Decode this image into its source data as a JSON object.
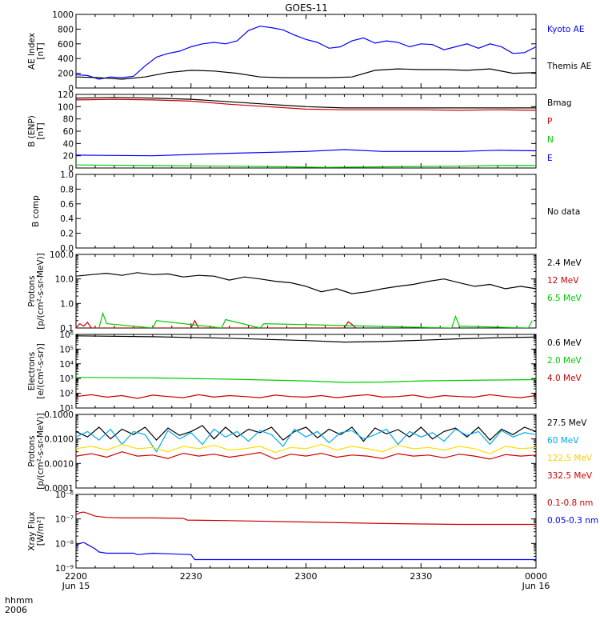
{
  "title": "GOES-11",
  "time_axis": {
    "label_line1": "hhmm",
    "label_line2": "2006",
    "ticks": [
      {
        "minute": 0,
        "label": "2200",
        "sub": "Jun 15"
      },
      {
        "minute": 30,
        "label": "2230",
        "sub": ""
      },
      {
        "minute": 60,
        "label": "2300",
        "sub": ""
      },
      {
        "minute": 90,
        "label": "2330",
        "sub": ""
      },
      {
        "minute": 120,
        "label": "0000",
        "sub": "Jun 16"
      }
    ]
  },
  "chart_data": [
    {
      "id": "ae",
      "type": "line",
      "ylabel": "AE Index\n[nT]",
      "yscale": "linear",
      "ylim": [
        0,
        1000
      ],
      "yticks": [
        0,
        200,
        400,
        600,
        800,
        1000
      ],
      "ytick_labels": [
        "0",
        "200",
        "400",
        "600",
        "800",
        "1000"
      ],
      "series": [
        {
          "name": "Kyoto AE",
          "color": "#0000ff",
          "x": [
            0,
            3,
            6,
            9,
            12,
            15,
            18,
            21,
            24,
            27,
            30,
            33,
            36,
            39,
            42,
            45,
            48,
            51,
            54,
            57,
            60,
            63,
            66,
            69,
            72,
            75,
            78,
            81,
            84,
            87,
            90,
            93,
            96,
            99,
            102,
            105,
            108,
            111,
            114,
            117,
            120
          ],
          "y": [
            180,
            170,
            120,
            150,
            140,
            160,
            300,
            420,
            470,
            500,
            560,
            600,
            620,
            600,
            640,
            780,
            840,
            820,
            790,
            720,
            660,
            620,
            540,
            560,
            640,
            680,
            610,
            640,
            620,
            560,
            600,
            590,
            520,
            560,
            600,
            540,
            600,
            560,
            470,
            480,
            560
          ]
        },
        {
          "name": "Themis AE",
          "color": "#000000",
          "x": [
            0,
            6,
            12,
            18,
            24,
            30,
            36,
            42,
            48,
            54,
            60,
            66,
            72,
            78,
            84,
            90,
            96,
            102,
            108,
            114,
            120
          ],
          "y": [
            150,
            140,
            120,
            150,
            210,
            240,
            230,
            200,
            150,
            140,
            140,
            140,
            150,
            240,
            260,
            250,
            250,
            240,
            260,
            200,
            210
          ]
        }
      ]
    },
    {
      "id": "bfield",
      "type": "line",
      "ylabel": "B (ENP)\n[nT]",
      "yscale": "linear",
      "ylim": [
        0,
        120
      ],
      "yticks": [
        0,
        20,
        40,
        60,
        80,
        100,
        120
      ],
      "ytick_labels": [
        "0",
        "20",
        "40",
        "60",
        "80",
        "100",
        "120"
      ],
      "series": [
        {
          "name": "Bmag",
          "color": "#000000",
          "x": [
            0,
            10,
            20,
            30,
            40,
            50,
            60,
            70,
            80,
            90,
            100,
            110,
            120
          ],
          "y": [
            114,
            115,
            114,
            112,
            108,
            104,
            100,
            98,
            98,
            98,
            98,
            98,
            98
          ]
        },
        {
          "name": "P",
          "color": "#cc0000",
          "x": [
            0,
            10,
            20,
            30,
            40,
            50,
            60,
            70,
            80,
            90,
            100,
            110,
            120
          ],
          "y": [
            111,
            112,
            111,
            109,
            104,
            100,
            96,
            95,
            95,
            95,
            94,
            95,
            94
          ]
        },
        {
          "name": "N",
          "color": "#00cc00",
          "x": [
            0,
            20,
            40,
            55,
            65,
            80,
            100,
            110,
            120
          ],
          "y": [
            5,
            4,
            3,
            2,
            1,
            2,
            3,
            4,
            4
          ]
        },
        {
          "name": "E",
          "color": "#0000ff",
          "x": [
            0,
            20,
            40,
            60,
            70,
            80,
            100,
            110,
            120
          ],
          "y": [
            21,
            20,
            24,
            27,
            30,
            27,
            27,
            29,
            28
          ]
        }
      ]
    },
    {
      "id": "bcomp",
      "type": "line",
      "ylabel": "B comp",
      "yscale": "linear",
      "ylim": [
        0,
        1
      ],
      "yticks": [
        0,
        0.2,
        0.4,
        0.6,
        0.8,
        1.0
      ],
      "ytick_labels": [
        "0.0",
        "0.2",
        "0.4",
        "0.6",
        "0.8",
        "1.0"
      ],
      "series": [],
      "side_labels": [
        {
          "text": "No data",
          "color": "#000000"
        }
      ]
    },
    {
      "id": "protons_low",
      "type": "line",
      "ylabel": "Protons\n[p/(cm²-s-sr-MeV)]",
      "yscale": "log",
      "ylim": [
        0.1,
        100
      ],
      "yticks": [
        0.1,
        1,
        10,
        100
      ],
      "ytick_labels": [
        "0.1",
        "1.0",
        "10.0",
        "100.0"
      ],
      "series": [
        {
          "name": "2.4 MeV",
          "color": "#000000",
          "x": [
            0,
            4,
            8,
            12,
            16,
            20,
            24,
            28,
            32,
            36,
            40,
            44,
            48,
            52,
            56,
            60,
            64,
            68,
            72,
            76,
            80,
            84,
            88,
            92,
            96,
            100,
            104,
            108,
            112,
            116,
            120
          ],
          "y": [
            13,
            15,
            17,
            14,
            18,
            15,
            16,
            12,
            14,
            13,
            9,
            12,
            10,
            8,
            7,
            5,
            3,
            4,
            2.5,
            3,
            4,
            5,
            6,
            8,
            10,
            7,
            5,
            6,
            4,
            5,
            4
          ]
        },
        {
          "name": "12 MeV",
          "color": "#cc0000",
          "x": [
            0,
            1,
            2,
            3,
            4,
            30,
            31,
            32,
            70,
            71,
            72,
            73
          ],
          "y": [
            0.1,
            0.15,
            0.12,
            0.17,
            0.1,
            0.1,
            0.2,
            0.1,
            0.1,
            0.18,
            0.14,
            0.1
          ]
        },
        {
          "name": "6.5 MeV",
          "color": "#00cc00",
          "x": [
            6,
            7,
            8,
            20,
            21,
            38,
            39,
            48,
            49,
            98,
            99,
            100,
            118,
            119
          ],
          "y": [
            0.1,
            0.4,
            0.15,
            0.1,
            0.2,
            0.1,
            0.22,
            0.1,
            0.15,
            0.1,
            0.3,
            0.12,
            0.1,
            0.2
          ]
        }
      ]
    },
    {
      "id": "electrons",
      "type": "line",
      "ylabel": "Electrons\n[e/(cm²-s-sr)]",
      "yscale": "log",
      "ylim": [
        10,
        1000000
      ],
      "yticks": [
        10,
        100,
        1000,
        10000,
        100000,
        1000000
      ],
      "ytick_labels": [
        "10¹",
        "10²",
        "10³",
        "10⁴",
        "10⁵",
        "10⁶"
      ],
      "series": [
        {
          "name": "0.6 MeV",
          "color": "#000000",
          "x": [
            0,
            20,
            40,
            60,
            70,
            80,
            90,
            100,
            110,
            120
          ],
          "y": [
            800000,
            700000,
            550000,
            380000,
            300000,
            330000,
            400000,
            500000,
            600000,
            650000
          ]
        },
        {
          "name": "2.0 MeV",
          "color": "#00cc00",
          "x": [
            0,
            20,
            40,
            60,
            70,
            80,
            90,
            100,
            110,
            120
          ],
          "y": [
            1200,
            1100,
            900,
            700,
            550,
            580,
            700,
            750,
            800,
            850
          ]
        },
        {
          "name": "4.0 MeV",
          "color": "#cc0000",
          "x": [
            0,
            4,
            8,
            12,
            16,
            20,
            24,
            28,
            32,
            36,
            40,
            44,
            48,
            52,
            56,
            60,
            64,
            68,
            72,
            76,
            80,
            84,
            88,
            92,
            96,
            100,
            104,
            108,
            112,
            116,
            120
          ],
          "y": [
            60,
            80,
            55,
            70,
            45,
            75,
            60,
            50,
            80,
            55,
            70,
            60,
            50,
            75,
            60,
            55,
            70,
            50,
            65,
            80,
            55,
            60,
            75,
            50,
            70,
            60,
            55,
            80,
            60,
            50,
            70
          ]
        }
      ]
    },
    {
      "id": "protons_high",
      "type": "line",
      "ylabel": "Protons\n[p/(cm²-s-sr-MeV)]",
      "yscale": "log",
      "ylim": [
        0.0001,
        0.1
      ],
      "yticks": [
        0.0001,
        0.001,
        0.01,
        0.1
      ],
      "ytick_labels": [
        "0.0001",
        "0.0010",
        "0.0100",
        "0.1000"
      ],
      "series": [
        {
          "name": "27.5 MeV",
          "color": "#000000",
          "x": [
            0,
            3,
            6,
            9,
            12,
            15,
            18,
            21,
            24,
            27,
            30,
            33,
            36,
            39,
            42,
            45,
            48,
            51,
            54,
            57,
            60,
            63,
            66,
            69,
            72,
            75,
            78,
            81,
            84,
            87,
            90,
            93,
            96,
            99,
            102,
            105,
            108,
            111,
            114,
            117,
            120
          ],
          "y": [
            0.02,
            0.012,
            0.03,
            0.01,
            0.025,
            0.015,
            0.03,
            0.009,
            0.028,
            0.014,
            0.02,
            0.035,
            0.01,
            0.03,
            0.012,
            0.025,
            0.018,
            0.03,
            0.009,
            0.02,
            0.03,
            0.011,
            0.025,
            0.015,
            0.03,
            0.008,
            0.028,
            0.016,
            0.024,
            0.012,
            0.03,
            0.01,
            0.02,
            0.028,
            0.012,
            0.03,
            0.009,
            0.025,
            0.015,
            0.03,
            0.02
          ]
        },
        {
          "name": "60 MeV",
          "color": "#00aaee",
          "x": [
            0,
            3,
            6,
            9,
            12,
            15,
            18,
            21,
            24,
            27,
            30,
            33,
            36,
            39,
            42,
            45,
            48,
            51,
            54,
            57,
            60,
            63,
            66,
            69,
            72,
            75,
            78,
            81,
            84,
            87,
            90,
            93,
            96,
            99,
            102,
            105,
            108,
            111,
            114,
            117,
            120
          ],
          "y": [
            0.012,
            0.02,
            0.009,
            0.025,
            0.006,
            0.02,
            0.015,
            0.003,
            0.022,
            0.01,
            0.018,
            0.006,
            0.025,
            0.012,
            0.02,
            0.008,
            0.022,
            0.015,
            0.005,
            0.025,
            0.012,
            0.02,
            0.007,
            0.018,
            0.022,
            0.01,
            0.015,
            0.025,
            0.006,
            0.02,
            0.012,
            0.018,
            0.008,
            0.025,
            0.014,
            0.02,
            0.006,
            0.022,
            0.012,
            0.018,
            0.015
          ]
        },
        {
          "name": "122.5 MeV",
          "color": "#ffdd00",
          "x": [
            0,
            4,
            8,
            12,
            16,
            20,
            24,
            28,
            32,
            36,
            40,
            44,
            48,
            52,
            56,
            60,
            64,
            68,
            72,
            76,
            80,
            84,
            88,
            92,
            96,
            100,
            104,
            108,
            112,
            116,
            120
          ],
          "y": [
            0.004,
            0.005,
            0.0035,
            0.006,
            0.004,
            0.0045,
            0.003,
            0.005,
            0.004,
            0.0055,
            0.0035,
            0.004,
            0.005,
            0.0028,
            0.0045,
            0.004,
            0.006,
            0.0035,
            0.005,
            0.004,
            0.003,
            0.0055,
            0.004,
            0.0045,
            0.0035,
            0.005,
            0.004,
            0.0025,
            0.005,
            0.004,
            0.0045
          ]
        },
        {
          "name": "332.5 MeV",
          "color": "#cc0000",
          "x": [
            0,
            4,
            8,
            12,
            16,
            20,
            24,
            28,
            32,
            36,
            40,
            44,
            48,
            52,
            56,
            60,
            64,
            68,
            72,
            76,
            80,
            84,
            88,
            92,
            96,
            100,
            104,
            108,
            112,
            116,
            120
          ],
          "y": [
            0.002,
            0.0025,
            0.0018,
            0.003,
            0.002,
            0.0022,
            0.0016,
            0.0026,
            0.002,
            0.0024,
            0.0018,
            0.0022,
            0.0028,
            0.0015,
            0.0024,
            0.002,
            0.0026,
            0.0018,
            0.0022,
            0.002,
            0.0016,
            0.0025,
            0.002,
            0.0022,
            0.0017,
            0.0024,
            0.002,
            0.0015,
            0.0023,
            0.002,
            0.0022
          ]
        }
      ]
    },
    {
      "id": "xray",
      "type": "line",
      "ylabel": "Xray Flux\n[W/m²]",
      "yscale": "log",
      "ylim": [
        1e-09,
        1e-06
      ],
      "yticks": [
        1e-09,
        1e-08,
        1e-07,
        1e-06
      ],
      "ytick_labels": [
        "10⁻⁹",
        "10⁻⁸",
        "10⁻⁷",
        "10⁻⁶"
      ],
      "series": [
        {
          "name": "0.1-0.8 nm",
          "color": "#cc0000",
          "x": [
            0,
            1,
            2,
            3,
            5,
            8,
            12,
            20,
            28,
            29,
            40,
            60,
            80,
            100,
            120
          ],
          "y": [
            1.5e-07,
            1.8e-07,
            1.9e-07,
            1.7e-07,
            1.3e-07,
            1.15e-07,
            1.1e-07,
            1.1e-07,
            1.05e-07,
            9e-08,
            8.5e-08,
            7.5e-08,
            6.5e-08,
            6e-08,
            6e-08
          ]
        },
        {
          "name": "0.05-0.3 nm",
          "color": "#0000ff",
          "x": [
            0,
            1,
            2,
            3,
            5,
            6,
            8,
            12,
            15,
            16,
            20,
            24,
            30,
            31,
            40,
            60,
            80,
            100,
            120
          ],
          "y": [
            8e-09,
            1e-08,
            1.1e-08,
            9e-09,
            6e-09,
            4.5e-09,
            4e-09,
            4e-09,
            4e-09,
            3.5e-09,
            4e-09,
            3.8e-09,
            3.5e-09,
            2.2e-09,
            2.2e-09,
            2.2e-09,
            2.2e-09,
            2.2e-09,
            2.2e-09
          ]
        }
      ]
    }
  ]
}
